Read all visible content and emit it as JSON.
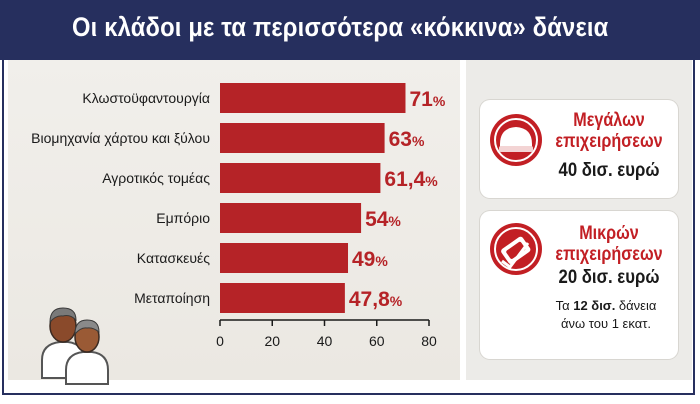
{
  "header": {
    "title": "Οι κλάδοι με τα περισσότερα «κόκκινα» δάνεια"
  },
  "chart_data": {
    "type": "bar",
    "orientation": "horizontal",
    "title": "Οι κλάδοι με τα περισσότερα «κόκκινα» δάνεια",
    "categories": [
      "Κλωστοϋφαντουργία",
      "Βιομηχανία χάρτου και ξύλου",
      "Αγροτικός τομέας",
      "Εμπόριο",
      "Κατασκευές",
      "Μεταποίηση"
    ],
    "values": [
      71,
      63,
      61.4,
      54,
      49,
      47.8
    ],
    "value_labels": [
      "71",
      "63",
      "61,4",
      "54",
      "49",
      "47,8"
    ],
    "value_suffix": "%",
    "xlim": [
      0,
      80
    ],
    "xticks": [
      "0",
      "20",
      "40",
      "60",
      "80"
    ],
    "bar_color": "#b52327",
    "label_color": "#b52327",
    "grid": false
  },
  "cards": {
    "large": {
      "title_line1": "Μεγάλων",
      "title_line2": "επιχειρήσεων",
      "amount": "40 δισ. ευρώ"
    },
    "small": {
      "title_line1": "Μικρών",
      "title_line2": "επιχειρήσεων",
      "amount": "20 δισ. ευρώ",
      "note_prefix": "Τα ",
      "note_bold": "12 δισ.",
      "note_rest": " δάνεια",
      "note_line2": "άνω του 1 εκατ."
    }
  },
  "colors": {
    "header_bg": "#262f5e",
    "accent_red": "#c21f24"
  }
}
